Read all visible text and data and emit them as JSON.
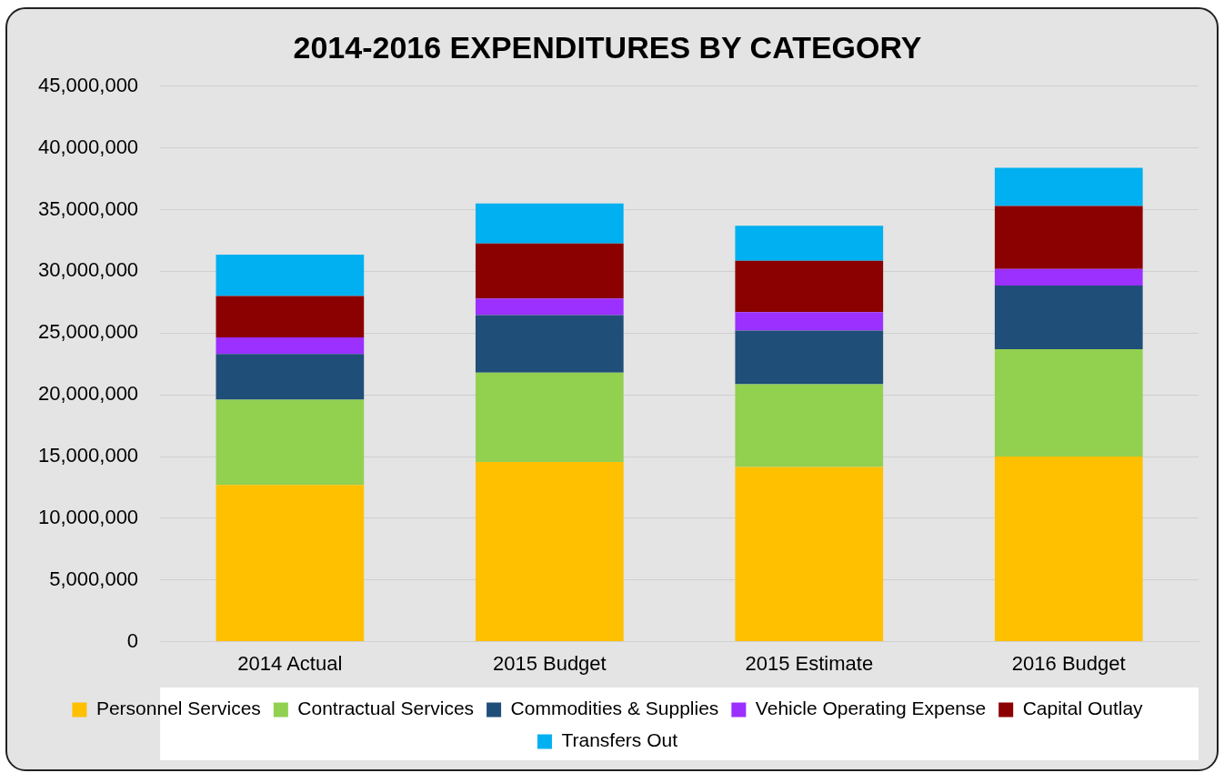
{
  "chart_data": {
    "type": "bar",
    "title": "2014-2016 EXPENDITURES BY CATEGORY",
    "categories": [
      "2014 Actual",
      "2015 Budget",
      "2015 Estimate",
      "2016 Budget"
    ],
    "stacked": true,
    "series": [
      {
        "name": "Personnel Services",
        "color": "#ffc000",
        "values": [
          12700000,
          14550000,
          14150000,
          15000000
        ]
      },
      {
        "name": "Contractual Services",
        "color": "#92d050",
        "values": [
          6900000,
          7250000,
          6700000,
          8700000
        ]
      },
      {
        "name": "Commodities & Supplies",
        "color": "#1f4e79",
        "values": [
          3700000,
          4650000,
          4350000,
          5150000
        ]
      },
      {
        "name": "Vehicle Operating Expense",
        "color": "#9b30ff",
        "values": [
          1350000,
          1350000,
          1500000,
          1350000
        ]
      },
      {
        "name": "Capital Outlay",
        "color": "#8b0000",
        "values": [
          3350000,
          4450000,
          4150000,
          5100000
        ]
      },
      {
        "name": "Transfers Out",
        "color": "#00b0f0",
        "values": [
          3350000,
          3250000,
          2850000,
          3100000
        ]
      }
    ],
    "ylim": [
      0,
      45000000
    ],
    "yticks": [
      {
        "value": 0,
        "label": "0"
      },
      {
        "value": 5000000,
        "label": "5,000,000"
      },
      {
        "value": 10000000,
        "label": "10,000,000"
      },
      {
        "value": 15000000,
        "label": "15,000,000"
      },
      {
        "value": 20000000,
        "label": "20,000,000"
      },
      {
        "value": 25000000,
        "label": "25,000,000"
      },
      {
        "value": 30000000,
        "label": "30,000,000"
      },
      {
        "value": 35000000,
        "label": "35,000,000"
      },
      {
        "value": 40000000,
        "label": "40,000,000"
      },
      {
        "value": 45000000,
        "label": "45,000,000"
      }
    ],
    "grid": "y",
    "legend": "bottom"
  }
}
